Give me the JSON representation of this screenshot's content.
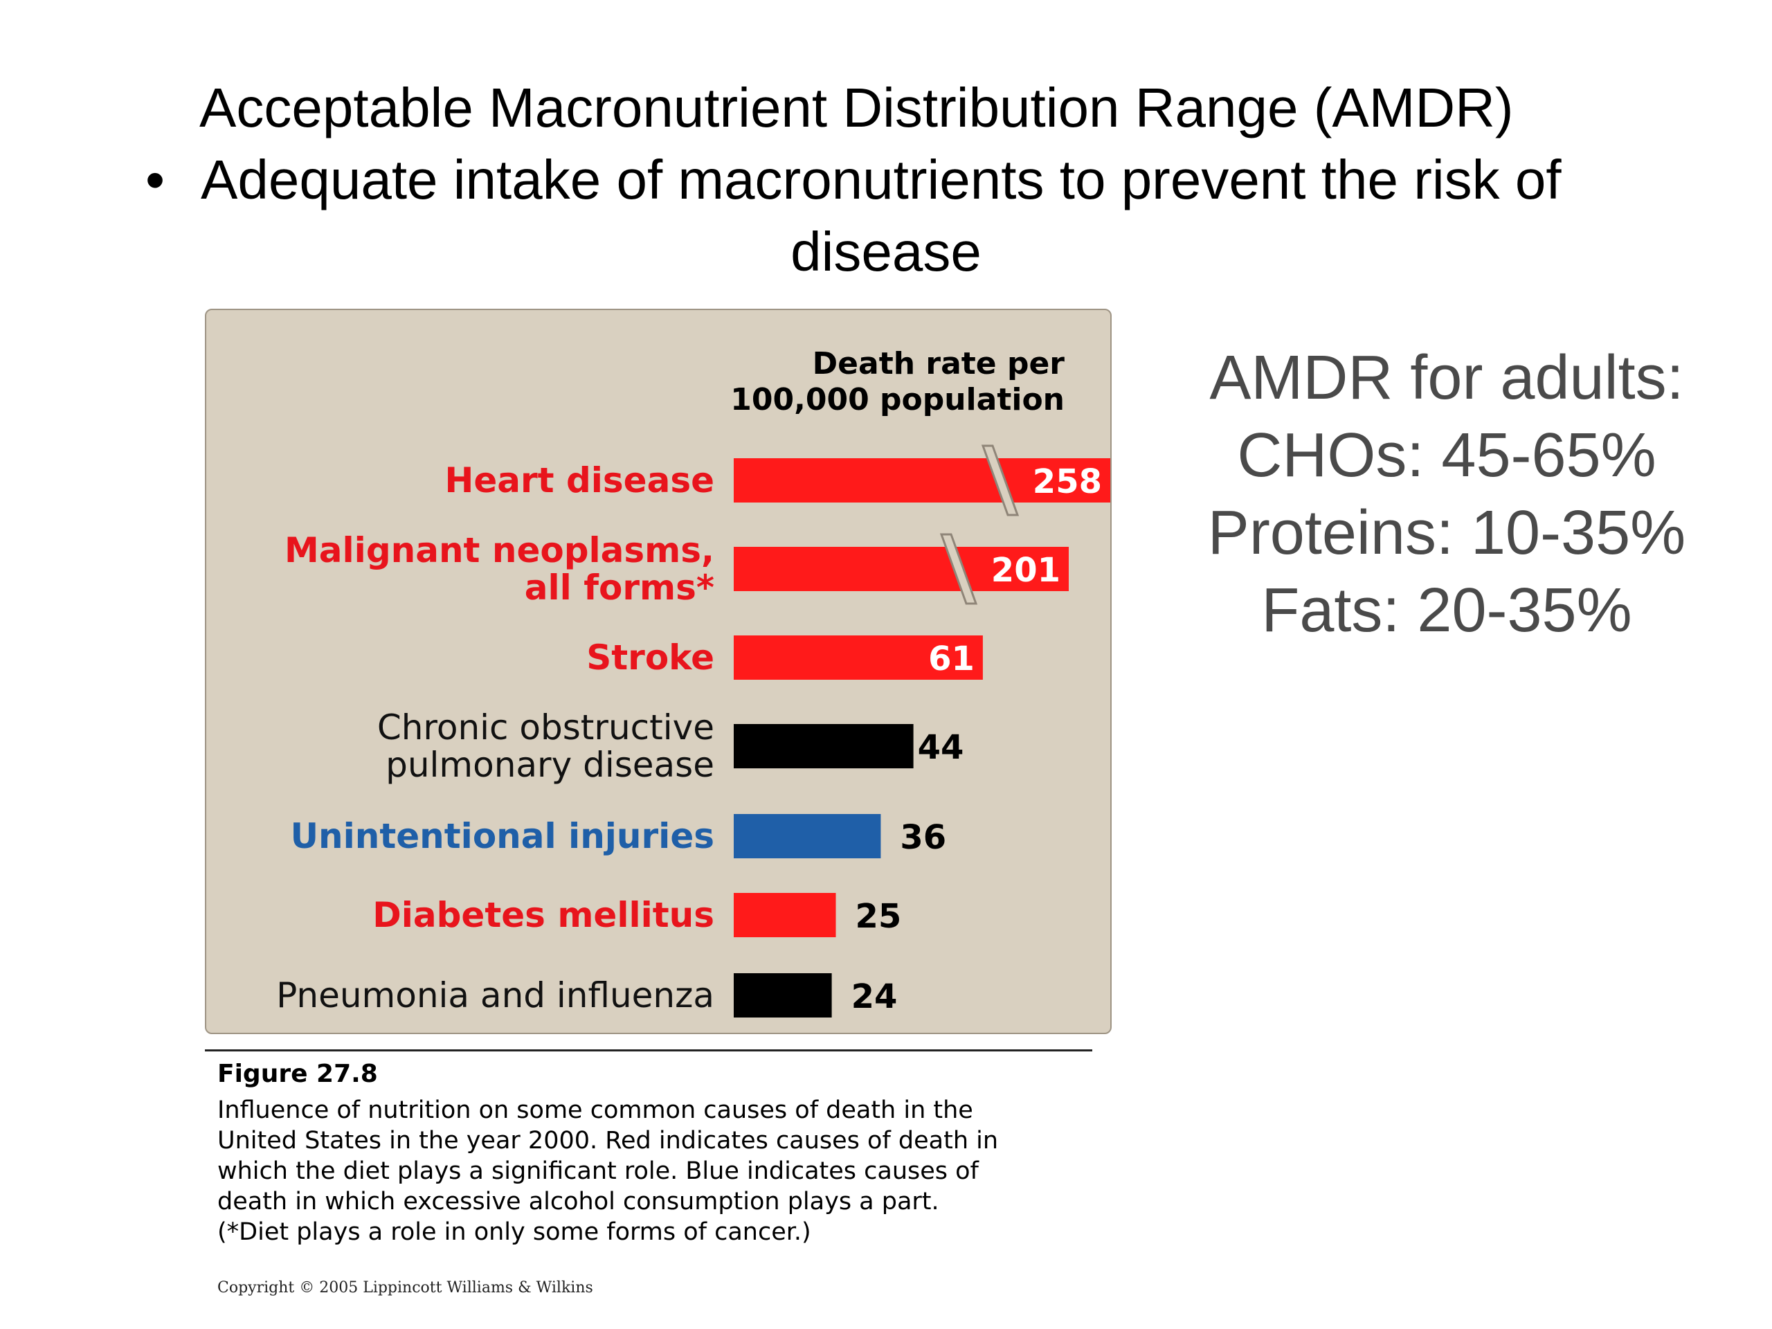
{
  "slide": {
    "title": "Acceptable Macronutrient Distribution Range (AMDR)",
    "bullet_marker": "•",
    "bullet_line1": "Adequate intake of macronutrients to prevent the risk of",
    "bullet_line2": "disease"
  },
  "amdr_box": {
    "heading": "AMDR for adults:",
    "lines": [
      "CHOs: 45-65%",
      "Proteins: 10-35%",
      "Fats: 20-35%"
    ],
    "color": "#4a4a4a"
  },
  "figure": {
    "number": "Figure 27.8",
    "caption_lines": [
      "Influence of nutrition on some common causes of death in the",
      "United States in the year 2000.  Red indicates causes of death in",
      "which the diet plays a significant role. Blue indicates causes of",
      "death in which excessive alcohol consumption plays a part.",
      "(*Diet plays a role in only some forms of cancer.)"
    ],
    "copyright": "Copyright © 2005 Lippincott Williams & Wilkins"
  },
  "chart_data": {
    "type": "bar",
    "orientation": "horizontal",
    "value_axis_label_lines": [
      "Death rate per",
      "100,000 population"
    ],
    "broken_bars": [
      "Heart disease",
      "Malignant neoplasms, all forms*"
    ],
    "background": "#d9d0c0",
    "categories": [
      {
        "label_lines": [
          "Heart disease"
        ],
        "value": 258,
        "color": "#ff1a1a",
        "label_color": "#e8141c",
        "bold": true
      },
      {
        "label_lines": [
          "Malignant neoplasms,",
          "all forms*"
        ],
        "value": 201,
        "color": "#ff1a1a",
        "label_color": "#e8141c",
        "bold": true
      },
      {
        "label_lines": [
          "Stroke"
        ],
        "value": 61,
        "color": "#ff1a1a",
        "label_color": "#e8141c",
        "bold": true
      },
      {
        "label_lines": [
          "Chronic obstructive",
          "pulmonary disease"
        ],
        "value": 44,
        "color": "#000000",
        "label_color": "#111111",
        "bold": false
      },
      {
        "label_lines": [
          "Unintentional injuries"
        ],
        "value": 36,
        "color": "#1f5fa8",
        "label_color": "#1f5fa8",
        "bold": true
      },
      {
        "label_lines": [
          "Diabetes mellitus"
        ],
        "value": 25,
        "color": "#ff1a1a",
        "label_color": "#e8141c",
        "bold": true
      },
      {
        "label_lines": [
          "Pneumonia and influenza"
        ],
        "value": 24,
        "color": "#000000",
        "label_color": "#111111",
        "bold": false
      }
    ]
  }
}
